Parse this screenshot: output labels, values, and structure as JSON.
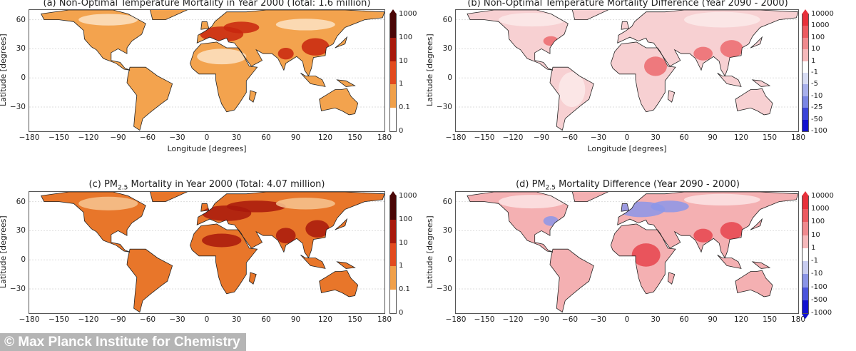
{
  "panels": [
    {
      "id": "a",
      "title_prefix": "(a) Non-Optimal Temperature Mortality in Year 2000 (Total: 1.6 million)",
      "title_sub": "",
      "title_suffix": "",
      "xlabel": "Longitude [degrees]",
      "ylabel": "Latitude [degrees]",
      "lon_ticks": [
        "−180",
        "−150",
        "−120",
        "−90",
        "−60",
        "−30",
        "0",
        "30",
        "60",
        "90",
        "120",
        "150",
        "180"
      ],
      "lat_ticks": [
        "60",
        "30",
        "0",
        "−30"
      ],
      "colorbar_labels": [
        "1000",
        "100",
        "10",
        "1",
        "0.1",
        "0"
      ],
      "colorbar_colors": [
        "#4a0606",
        "#a8190c",
        "#e24a1e",
        "#f0a04a",
        "#ffffff"
      ],
      "land_color": "#f3a34e",
      "hotspot_color": "#c8260e",
      "low_color": "#fbe3c4"
    },
    {
      "id": "b",
      "title_prefix": "(b) Non-Optimal Temperature Mortality Difference (Year 2090 - 2000)",
      "title_sub": "",
      "title_suffix": "",
      "xlabel": "Longitude [degrees]",
      "ylabel": "Latitude [degrees]",
      "lon_ticks": [
        "−180",
        "−150",
        "−120",
        "−90",
        "−60",
        "−30",
        "0",
        "30",
        "60",
        "90",
        "120",
        "150",
        "180"
      ],
      "lat_ticks": [
        "60",
        "30",
        "0",
        "−30"
      ],
      "colorbar_labels": [
        "10000",
        "1000",
        "100",
        "10",
        "1",
        "-1",
        "-5",
        "-10",
        "-25",
        "-50",
        "-100"
      ],
      "colorbar_colors": [
        "#e8303a",
        "#ec5a60",
        "#f08a8e",
        "#f6b9bb",
        "#ffffff",
        "#d8dcf4",
        "#a8b0ec",
        "#7a86e4",
        "#3a44d8",
        "#1010d0"
      ],
      "land_color": "#f7d0d2",
      "hotspot_color": "#ec6a6e",
      "low_color": "#fbeaea"
    },
    {
      "id": "c",
      "title_prefix": "(c) PM",
      "title_sub": "2.5",
      "title_suffix": " Mortality in Year 2000 (Total: 4.07 million)",
      "xlabel": "",
      "ylabel": "Latitude [degrees]",
      "lon_ticks": [
        "−180",
        "−150",
        "−120",
        "−90",
        "−60",
        "−30",
        "0",
        "30",
        "60",
        "90",
        "120",
        "150",
        "180"
      ],
      "lat_ticks": [
        "60",
        "30",
        "0",
        "−30"
      ],
      "colorbar_labels": [
        "1000",
        "100",
        "10",
        "1",
        "0.1",
        "0"
      ],
      "colorbar_colors": [
        "#4a0606",
        "#a8190c",
        "#e24a1e",
        "#f0a04a",
        "#ffffff"
      ],
      "land_color": "#e8762a",
      "hotspot_color": "#a8190c",
      "low_color": "#f6c592"
    },
    {
      "id": "d",
      "title_prefix": "(d) PM",
      "title_sub": "2.5",
      "title_suffix": " Mortality Difference (Year 2090 - 2000)",
      "xlabel": "",
      "ylabel": "Latitude [degrees]",
      "lon_ticks": [
        "−180",
        "−150",
        "−120",
        "−90",
        "−60",
        "−30",
        "0",
        "30",
        "60",
        "90",
        "120",
        "150",
        "180"
      ],
      "lat_ticks": [
        "60",
        "30",
        "0",
        "−30"
      ],
      "colorbar_labels": [
        "10000",
        "1000",
        "100",
        "10",
        "1",
        "-1",
        "-10",
        "-100",
        "-500",
        "-1000"
      ],
      "colorbar_colors": [
        "#e8303a",
        "#ec5a60",
        "#f08a8e",
        "#f6b9bb",
        "#ffffff",
        "#c8ccf0",
        "#8a94e6",
        "#4a54dc",
        "#1010d0"
      ],
      "land_color": "#f4b0b2",
      "hotspot_color": "#e6444c",
      "low_color": "#fbe4e4",
      "cool_color": "#8c96e8"
    }
  ],
  "watermark": "© Max Planck Institute for Chemistry"
}
